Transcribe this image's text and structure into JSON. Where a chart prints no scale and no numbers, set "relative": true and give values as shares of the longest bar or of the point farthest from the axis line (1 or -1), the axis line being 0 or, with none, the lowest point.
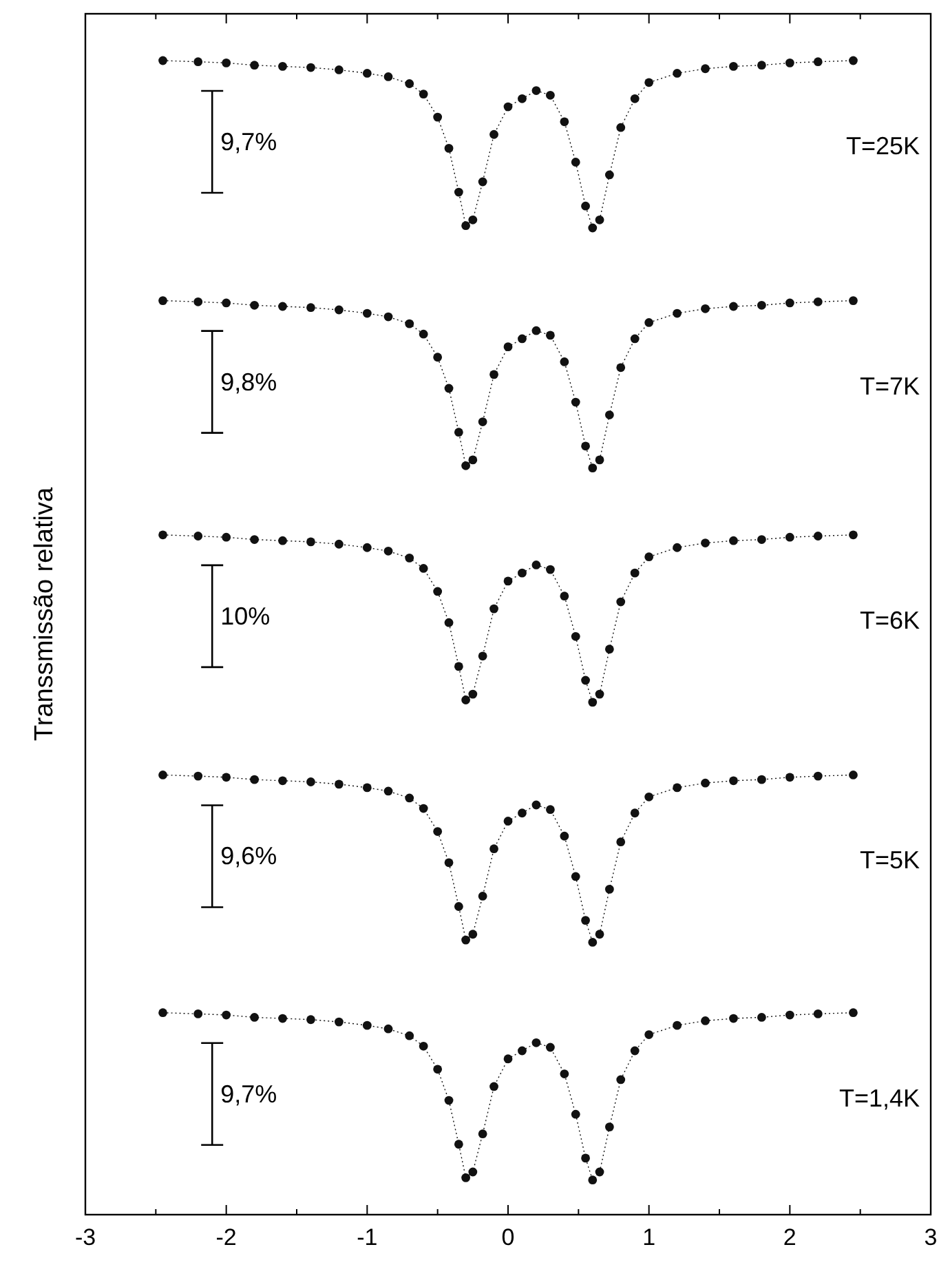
{
  "chart_data": {
    "type": "line",
    "relative": true,
    "ylabel": "Transsmissão relativa",
    "xlim": [
      -3,
      3
    ],
    "xticks": [
      -3,
      {
        "value": -2.5,
        "label": null
      },
      -2,
      {
        "value": -1.5,
        "label": null
      },
      -1,
      {
        "value": -0.5,
        "label": null
      },
      0,
      {
        "value": 0.5,
        "label": null
      },
      1,
      {
        "value": 1.5,
        "label": null
      },
      2,
      {
        "value": 2.5,
        "label": null
      },
      3
    ],
    "tick_labels": "x",
    "marker": "circle",
    "line_style": "dotted",
    "x": [
      -2.45,
      -2.2,
      -2.0,
      -1.8,
      -1.6,
      -1.4,
      -1.2,
      -1.0,
      -0.85,
      -0.7,
      -0.6,
      -0.5,
      -0.42,
      -0.35,
      -0.3,
      -0.25,
      -0.18,
      -0.1,
      0,
      0.1,
      0.2,
      0.3,
      0.4,
      0.48,
      0.55,
      0.6,
      0.65,
      0.72,
      0.8,
      0.9,
      1.0,
      1.2,
      1.4,
      1.6,
      1.8,
      2.0,
      2.2,
      2.45
    ],
    "series": [
      {
        "name": "T=25K",
        "color": "#111111",
        "values": [
          1,
          0.999,
          0.998,
          0.996,
          0.995,
          0.994,
          0.992,
          0.989,
          0.986,
          0.98,
          0.971,
          0.951,
          0.924,
          0.886,
          0.857,
          0.862,
          0.895,
          0.936,
          0.96,
          0.967,
          0.974,
          0.97,
          0.947,
          0.912,
          0.874,
          0.855,
          0.862,
          0.901,
          0.942,
          0.967,
          0.981,
          0.989,
          0.993,
          0.995,
          0.996,
          0.998,
          0.999,
          1
        ]
      },
      {
        "name": "T=7K",
        "color": "#111111",
        "values": [
          0.792,
          0.791,
          0.79,
          0.788,
          0.787,
          0.786,
          0.784,
          0.781,
          0.778,
          0.772,
          0.763,
          0.743,
          0.716,
          0.678,
          0.649,
          0.654,
          0.687,
          0.728,
          0.752,
          0.759,
          0.766,
          0.762,
          0.739,
          0.704,
          0.666,
          0.647,
          0.654,
          0.693,
          0.734,
          0.759,
          0.773,
          0.781,
          0.785,
          0.787,
          0.788,
          0.79,
          0.791,
          0.792
        ]
      },
      {
        "name": "T=6K",
        "color": "#111111",
        "values": [
          0.589,
          0.588,
          0.587,
          0.585,
          0.584,
          0.583,
          0.581,
          0.578,
          0.575,
          0.569,
          0.56,
          0.54,
          0.513,
          0.475,
          0.446,
          0.451,
          0.484,
          0.525,
          0.549,
          0.556,
          0.563,
          0.559,
          0.536,
          0.501,
          0.463,
          0.444,
          0.451,
          0.49,
          0.531,
          0.556,
          0.57,
          0.578,
          0.582,
          0.584,
          0.585,
          0.587,
          0.588,
          0.589
        ]
      },
      {
        "name": "T=5K",
        "color": "#111111",
        "values": [
          0.381,
          0.38,
          0.379,
          0.377,
          0.376,
          0.375,
          0.373,
          0.37,
          0.367,
          0.361,
          0.352,
          0.332,
          0.305,
          0.267,
          0.238,
          0.243,
          0.276,
          0.317,
          0.341,
          0.348,
          0.355,
          0.351,
          0.328,
          0.293,
          0.255,
          0.236,
          0.243,
          0.282,
          0.323,
          0.348,
          0.362,
          0.37,
          0.374,
          0.376,
          0.377,
          0.379,
          0.38,
          0.381
        ]
      },
      {
        "name": "T=1,4K",
        "color": "#111111",
        "values": [
          0.175,
          0.174,
          0.173,
          0.171,
          0.17,
          0.169,
          0.167,
          0.164,
          0.161,
          0.155,
          0.146,
          0.126,
          0.099,
          0.061,
          0.032,
          0.037,
          0.07,
          0.111,
          0.135,
          0.142,
          0.149,
          0.145,
          0.122,
          0.087,
          0.049,
          0.03,
          0.037,
          0.076,
          0.117,
          0.142,
          0.156,
          0.164,
          0.168,
          0.17,
          0.171,
          0.173,
          0.174,
          0.175
        ]
      }
    ],
    "annotations": [
      "9,7%",
      "9,8%",
      "10%",
      "9,6%",
      "9,7%"
    ]
  }
}
